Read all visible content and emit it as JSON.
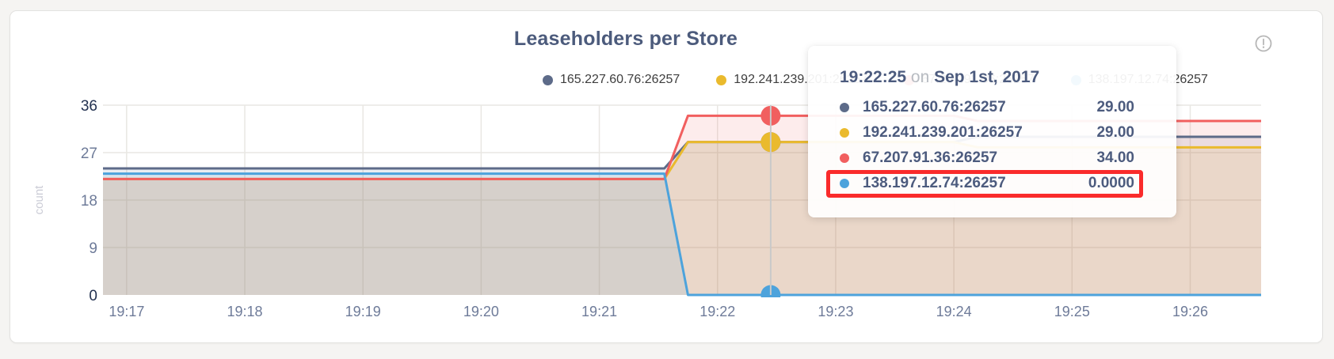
{
  "header": {
    "title": "Leaseholders per Store"
  },
  "icons": {
    "info": "exclamation-circle-icon"
  },
  "legend": {
    "items": [
      {
        "label": "165.227.60.76:26257",
        "color": "#5d6b89"
      },
      {
        "label": "192.241.239.201:26257",
        "color": "#eaba2d"
      },
      {
        "label": "67.207.91.36:26257",
        "color": "#f15f5f"
      },
      {
        "label": "138.197.12.74:26257",
        "color": "#4da3dc"
      }
    ]
  },
  "tooltip": {
    "time": "19:22:25",
    "conjunction": "on",
    "date": "Sep 1st, 2017",
    "highlight_color": "#fa2b2b",
    "rows": [
      {
        "label": "165.227.60.76:26257",
        "value": "29.00",
        "color": "#5d6b89",
        "highlighted": false
      },
      {
        "label": "192.241.239.201:26257",
        "value": "29.00",
        "color": "#eaba2d",
        "highlighted": false
      },
      {
        "label": "67.207.91.36:26257",
        "value": "34.00",
        "color": "#f15f5f",
        "highlighted": false
      },
      {
        "label": "138.197.12.74:26257",
        "value": "0.0000",
        "color": "#4da3dc",
        "highlighted": true
      }
    ]
  },
  "chart_data": {
    "type": "area",
    "title": "Leaseholders per Store",
    "xlabel": "",
    "ylabel": "count",
    "ylim": [
      0,
      36
    ],
    "y_ticks": [
      0,
      9,
      18,
      27,
      36
    ],
    "x_ticks": [
      {
        "minute": 17,
        "label": "19:17"
      },
      {
        "minute": 18,
        "label": "19:18"
      },
      {
        "minute": 19,
        "label": "19:19"
      },
      {
        "minute": 20,
        "label": "19:20"
      },
      {
        "minute": 21,
        "label": "19:21"
      },
      {
        "minute": 22,
        "label": "19:22"
      },
      {
        "minute": 23,
        "label": "19:23"
      },
      {
        "minute": 24,
        "label": "19:24"
      },
      {
        "minute": 25,
        "label": "19:25"
      },
      {
        "minute": 26,
        "label": "19:26"
      }
    ],
    "x_domain_minutes": [
      16.8,
      26.6
    ],
    "grid": true,
    "legend_position": "top",
    "fill_opacity": 0.12,
    "series": [
      {
        "name": "165.227.60.76:26257",
        "color": "#5d6b89",
        "points": [
          [
            16.8,
            24
          ],
          [
            21.55,
            24
          ],
          [
            21.75,
            29
          ],
          [
            24.0,
            29
          ],
          [
            24.2,
            30
          ],
          [
            26.6,
            30
          ]
        ]
      },
      {
        "name": "192.241.239.201:26257",
        "color": "#eaba2d",
        "points": [
          [
            16.8,
            22
          ],
          [
            21.55,
            22
          ],
          [
            21.75,
            29
          ],
          [
            24.0,
            29
          ],
          [
            24.2,
            28
          ],
          [
            26.6,
            28
          ]
        ]
      },
      {
        "name": "67.207.91.36:26257",
        "color": "#f15f5f",
        "points": [
          [
            16.8,
            22
          ],
          [
            21.55,
            22
          ],
          [
            21.75,
            34
          ],
          [
            24.0,
            34
          ],
          [
            24.2,
            33
          ],
          [
            26.6,
            33
          ]
        ]
      },
      {
        "name": "138.197.12.74:26257",
        "color": "#4da3dc",
        "points": [
          [
            16.8,
            23
          ],
          [
            21.55,
            23
          ],
          [
            21.75,
            0
          ],
          [
            26.6,
            0
          ]
        ]
      }
    ],
    "hover": {
      "minute": 22.45,
      "time_label": "19:22:25",
      "date_label": "Sep 1st, 2017",
      "values": [
        29,
        29,
        34,
        0
      ]
    }
  },
  "colors": {
    "page_bg": "#f5f4f2",
    "card_bg": "#ffffff",
    "card_border": "#e3e2e0",
    "title_text": "#4c5b7c",
    "tick_dark": "#223150",
    "tick_light": "#6e7b99",
    "axis_label": "#cbccd6",
    "grid": "#e9e7e3",
    "hover_line": "#c9c9c9",
    "legend_text": "#3d3d3d",
    "tooltip_text": "#4c5b7e",
    "tooltip_muted": "#b8bcc2",
    "info_icon": "#b7b7b7"
  }
}
